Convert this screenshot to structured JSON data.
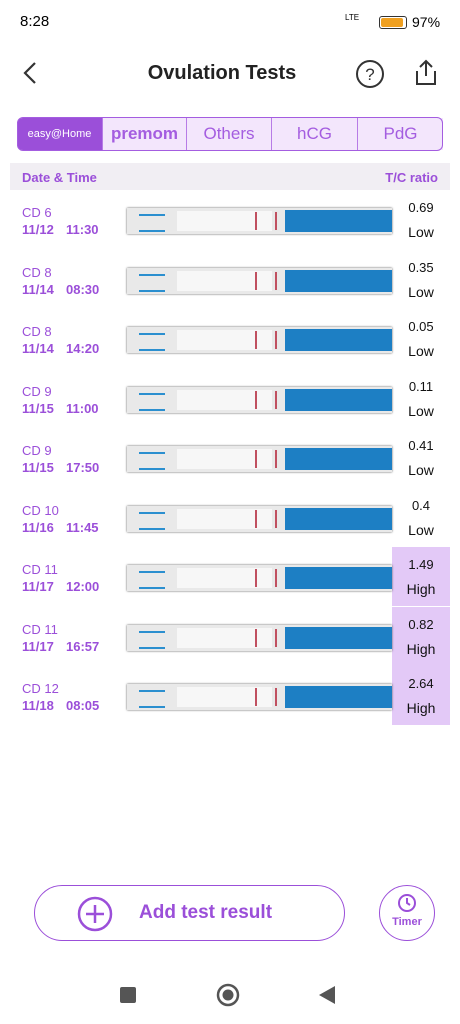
{
  "status_bar": {
    "time": "8:28",
    "network": "LTE",
    "battery": "97%"
  },
  "header": {
    "title": "Ovulation Tests"
  },
  "tabs": [
    "easy@Home",
    "premom",
    "Others",
    "hCG",
    "PdG"
  ],
  "table": {
    "columns": [
      "Date & Time",
      "T/C ratio"
    ],
    "rows": [
      {
        "cd": "CD 6",
        "date": "11/12",
        "time": "11:30",
        "ratio": "0.69",
        "level": "Low",
        "highlight": false
      },
      {
        "cd": "CD 8",
        "date": "11/14",
        "time": "08:30",
        "ratio": "0.35",
        "level": "Low",
        "highlight": false
      },
      {
        "cd": "CD 8",
        "date": "11/14",
        "time": "14:20",
        "ratio": "0.05",
        "level": "Low",
        "highlight": false
      },
      {
        "cd": "CD 9",
        "date": "11/15",
        "time": "11:00",
        "ratio": "0.11",
        "level": "Low",
        "highlight": false
      },
      {
        "cd": "CD 9",
        "date": "11/15",
        "time": "17:50",
        "ratio": "0.41",
        "level": "Low",
        "highlight": false
      },
      {
        "cd": "CD 10",
        "date": "11/16",
        "time": "11:45",
        "ratio": "0.4",
        "level": "Low",
        "highlight": false
      },
      {
        "cd": "CD 11",
        "date": "11/17",
        "time": "12:00",
        "ratio": "1.49",
        "level": "High",
        "highlight": true
      },
      {
        "cd": "CD 11",
        "date": "11/17",
        "time": "16:57",
        "ratio": "0.82",
        "level": "High",
        "highlight": true
      },
      {
        "cd": "CD 12",
        "date": "11/18",
        "time": "08:05",
        "ratio": "2.64",
        "level": "High",
        "highlight": true
      }
    ]
  },
  "actions": {
    "add": "Add test result",
    "timer": "Timer"
  }
}
